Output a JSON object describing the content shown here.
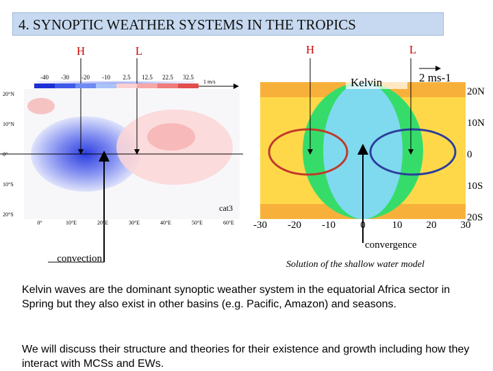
{
  "title": "4. SYNOPTIC WEATHER SYSTEMS IN THE TROPICS",
  "left_figure": {
    "labels": {
      "high": "H",
      "low": "L",
      "convection": "convection",
      "tag": "cat3"
    },
    "colorbar": [
      "-40",
      "-30",
      "-20",
      "-10",
      "2.5",
      "12.5",
      "22.5",
      "32.5"
    ],
    "vector_unit": "1 m/s",
    "lat_ticks": [
      "20°N",
      "10°N",
      "0°",
      "10°S",
      "20°S"
    ],
    "lon_ticks": [
      "0°",
      "10°E",
      "20°E",
      "30°E",
      "40°E",
      "50°E",
      "60°E"
    ]
  },
  "right_figure": {
    "labels": {
      "high": "H",
      "low": "L",
      "convergence": "convergence"
    },
    "panel_title": "Kelvin",
    "vector_unit": "2 ms-1",
    "lat_ticks": [
      "20N",
      "10N",
      "0",
      "10S",
      "20S"
    ],
    "x_ticks": [
      "-30",
      "-20",
      "-10",
      "0",
      "10",
      "20",
      "30"
    ],
    "caption": "Solution of the shallow water model"
  },
  "paragraphs": [
    "Kelvin waves are the dominant synoptic weather system in the equatorial Africa sector in Spring but they also exist in other basins (e.g. Pacific, Amazon) and seasons.",
    "We will discuss their structure and theories for their existence and growth including how they interact with MCSs and EWs."
  ]
}
